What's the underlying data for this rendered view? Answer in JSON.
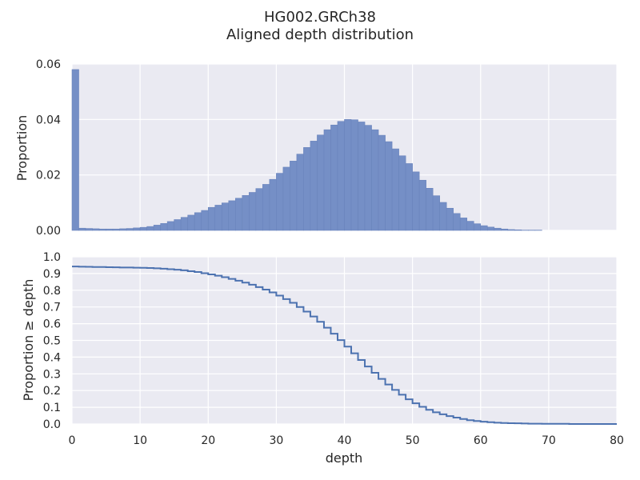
{
  "figure": {
    "title_line1": "HG002.GRCh38",
    "title_line2": "Aligned depth distribution"
  },
  "colors": {
    "axes_bg": "#eaeaf2",
    "grid": "#ffffff",
    "bar_fill": "#758fc6",
    "bar_edge": "#6a84bc",
    "line": "#4c72b0",
    "text": "#262626"
  },
  "chart_data": [
    {
      "type": "bar",
      "panel": "top",
      "title": "",
      "xlabel": "",
      "ylabel": "Proportion",
      "xlim": [
        0,
        80
      ],
      "ylim": [
        0,
        0.06
      ],
      "grid": true,
      "x_ticks": [
        0,
        10,
        20,
        30,
        40,
        50,
        60,
        70,
        80
      ],
      "y_ticks": [
        "0.00",
        "0.02",
        "0.04",
        "0.06"
      ],
      "depth": [
        0,
        1,
        2,
        3,
        4,
        5,
        6,
        7,
        8,
        9,
        10,
        11,
        12,
        13,
        14,
        15,
        16,
        17,
        18,
        19,
        20,
        21,
        22,
        23,
        24,
        25,
        26,
        27,
        28,
        29,
        30,
        31,
        32,
        33,
        34,
        35,
        36,
        37,
        38,
        39,
        40,
        41,
        42,
        43,
        44,
        45,
        46,
        47,
        48,
        49,
        50,
        51,
        52,
        53,
        54,
        55,
        56,
        57,
        58,
        59,
        60,
        61,
        62,
        63,
        64,
        65,
        66,
        67,
        68,
        69,
        70,
        71,
        72,
        73,
        74,
        75,
        76,
        77,
        78,
        79
      ],
      "proportion": [
        0.058,
        0.0008,
        0.0007,
        0.0006,
        0.0005,
        0.0005,
        0.0005,
        0.0006,
        0.0007,
        0.0009,
        0.0011,
        0.0014,
        0.0019,
        0.0025,
        0.0032,
        0.0039,
        0.0047,
        0.0055,
        0.0064,
        0.0072,
        0.0083,
        0.0091,
        0.0099,
        0.0107,
        0.0116,
        0.0126,
        0.0137,
        0.0151,
        0.0166,
        0.0184,
        0.0206,
        0.0228,
        0.025,
        0.0275,
        0.0299,
        0.0322,
        0.0344,
        0.0363,
        0.038,
        0.0393,
        0.04,
        0.0399,
        0.0391,
        0.0379,
        0.0363,
        0.0343,
        0.032,
        0.0294,
        0.0269,
        0.0241,
        0.0211,
        0.0181,
        0.0152,
        0.0125,
        0.0101,
        0.008,
        0.0061,
        0.0045,
        0.0033,
        0.0024,
        0.0017,
        0.0012,
        0.0008,
        0.0005,
        0.0003,
        0.0002,
        0.0001,
        0.0001,
        0.0001,
        0,
        0,
        0,
        0,
        0,
        0,
        0,
        0,
        0,
        0,
        0
      ]
    },
    {
      "type": "line",
      "panel": "bottom",
      "title": "",
      "xlabel": "depth",
      "ylabel": "Proportion ≥ depth",
      "xlim": [
        0,
        80
      ],
      "ylim": [
        0,
        1.0
      ],
      "grid": true,
      "x_ticks": [
        "0",
        "10",
        "20",
        "30",
        "40",
        "50",
        "60",
        "70",
        "80"
      ],
      "y_ticks": [
        "0.0",
        "0.1",
        "0.2",
        "0.3",
        "0.4",
        "0.5",
        "0.6",
        "0.7",
        "0.8",
        "0.9",
        "1.0"
      ],
      "depth": [
        0,
        1,
        2,
        3,
        4,
        5,
        6,
        7,
        8,
        9,
        10,
        11,
        12,
        13,
        14,
        15,
        16,
        17,
        18,
        19,
        20,
        21,
        22,
        23,
        24,
        25,
        26,
        27,
        28,
        29,
        30,
        31,
        32,
        33,
        34,
        35,
        36,
        37,
        38,
        39,
        40,
        41,
        42,
        43,
        44,
        45,
        46,
        47,
        48,
        49,
        50,
        51,
        52,
        53,
        54,
        55,
        56,
        57,
        58,
        59,
        60,
        61,
        62,
        63,
        64,
        65,
        66,
        67,
        68,
        69,
        70,
        71,
        72,
        73,
        74,
        75,
        76,
        77,
        78,
        79,
        80
      ],
      "proportion_ge_depth": [
        0.942,
        0.941,
        0.94,
        0.939,
        0.939,
        0.938,
        0.937,
        0.936,
        0.936,
        0.935,
        0.934,
        0.933,
        0.931,
        0.929,
        0.926,
        0.923,
        0.919,
        0.914,
        0.909,
        0.902,
        0.895,
        0.887,
        0.878,
        0.868,
        0.857,
        0.846,
        0.833,
        0.819,
        0.804,
        0.787,
        0.768,
        0.747,
        0.725,
        0.7,
        0.672,
        0.643,
        0.611,
        0.576,
        0.54,
        0.502,
        0.463,
        0.423,
        0.383,
        0.344,
        0.306,
        0.27,
        0.236,
        0.204,
        0.175,
        0.148,
        0.124,
        0.103,
        0.085,
        0.07,
        0.058,
        0.047,
        0.038,
        0.03,
        0.023,
        0.018,
        0.014,
        0.011,
        0.008,
        0.006,
        0.005,
        0.004,
        0.003,
        0.002,
        0.002,
        0.001,
        0.001,
        0.001,
        0.001,
        0,
        0,
        0,
        0,
        0,
        0,
        0,
        0
      ]
    }
  ]
}
